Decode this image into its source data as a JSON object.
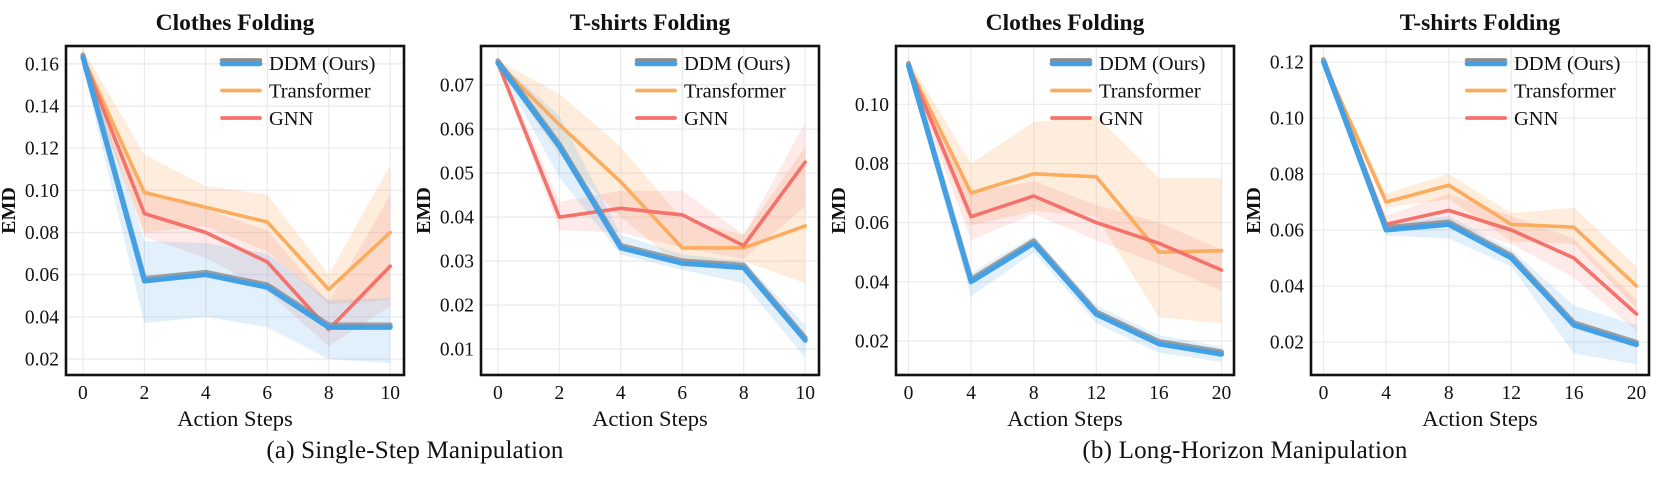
{
  "figure": {
    "captions": [
      {
        "label": "(a) Single-Step Manipulation"
      },
      {
        "label": "(b) Long-Horizon Manipulation"
      }
    ]
  },
  "colors": {
    "ddm": "#42A1E6",
    "ddm_shadow": "#8E8E8E",
    "transformer": "#FBAC5F",
    "gnn": "#F4726B",
    "grid": "#EAEAEF",
    "axis": "#111111"
  },
  "chart_data": [
    {
      "type": "line",
      "title": "Clothes Folding",
      "xlabel": "Action Steps",
      "ylabel": "EMD",
      "grid": true,
      "legend_position": "top-right",
      "x": [
        0,
        2,
        4,
        6,
        8,
        10
      ],
      "xticks": [
        0,
        2,
        4,
        6,
        8,
        10
      ],
      "yticks": [
        0.02,
        0.04,
        0.06,
        0.08,
        0.1,
        0.12,
        0.14,
        0.16
      ],
      "xlim": [
        -0.55,
        10.45
      ],
      "ylim": [
        0.0124,
        0.1685
      ],
      "series": [
        {
          "name": "DDM (Ours)",
          "color": "#42A1E6",
          "shadow": true,
          "band_opacity": 0.16,
          "values": [
            0.163,
            0.057,
            0.06,
            0.054,
            0.035,
            0.035
          ],
          "band_lower": [
            0.158,
            0.037,
            0.04,
            0.035,
            0.02,
            0.018
          ],
          "band_upper": [
            0.167,
            0.076,
            0.075,
            0.07,
            0.048,
            0.049
          ]
        },
        {
          "name": "Transformer",
          "color": "#FBAC5F",
          "shadow": false,
          "band_opacity": 0.22,
          "values": [
            0.163,
            0.099,
            0.092,
            0.085,
            0.053,
            0.08
          ],
          "band_lower": [
            0.158,
            0.08,
            0.083,
            0.071,
            0.046,
            0.048
          ],
          "band_upper": [
            0.167,
            0.117,
            0.102,
            0.098,
            0.06,
            0.112
          ]
        },
        {
          "name": "GNN",
          "color": "#F4726B",
          "shadow": false,
          "band_opacity": 0.15,
          "values": [
            0.163,
            0.089,
            0.08,
            0.066,
            0.034,
            0.064
          ],
          "band_lower": [
            0.158,
            0.078,
            0.068,
            0.052,
            0.026,
            0.045
          ],
          "band_upper": [
            0.167,
            0.1,
            0.091,
            0.081,
            0.047,
            0.098
          ]
        }
      ]
    },
    {
      "type": "line",
      "title": "T-shirts Folding",
      "xlabel": "Action Steps",
      "ylabel": "EMD",
      "grid": true,
      "legend_position": "top-right",
      "x": [
        0,
        2,
        4,
        6,
        8,
        10
      ],
      "xticks": [
        0,
        2,
        4,
        6,
        8,
        10
      ],
      "yticks": [
        0.01,
        0.02,
        0.03,
        0.04,
        0.05,
        0.06,
        0.07
      ],
      "xlim": [
        -0.55,
        10.45
      ],
      "ylim": [
        0.0041,
        0.0789
      ],
      "series": [
        {
          "name": "DDM (Ours)",
          "color": "#42A1E6",
          "shadow": true,
          "band_opacity": 0.16,
          "values": [
            0.075,
            0.056,
            0.033,
            0.0295,
            0.0285,
            0.012
          ],
          "band_lower": [
            0.0744,
            0.049,
            0.0315,
            0.028,
            0.025,
            0.008
          ],
          "band_upper": [
            0.0756,
            0.063,
            0.036,
            0.0315,
            0.03,
            0.0155
          ]
        },
        {
          "name": "Transformer",
          "color": "#FBAC5F",
          "shadow": false,
          "band_opacity": 0.22,
          "values": [
            0.075,
            0.061,
            0.048,
            0.033,
            0.033,
            0.038
          ],
          "band_lower": [
            0.0744,
            0.054,
            0.04,
            0.0285,
            0.03,
            0.025
          ],
          "band_upper": [
            0.0756,
            0.068,
            0.056,
            0.0395,
            0.036,
            0.056
          ]
        },
        {
          "name": "GNN",
          "color": "#F4726B",
          "shadow": false,
          "band_opacity": 0.15,
          "values": [
            0.075,
            0.04,
            0.042,
            0.0405,
            0.0335,
            0.0525
          ],
          "band_lower": [
            0.0744,
            0.037,
            0.0365,
            0.033,
            0.0305,
            0.0425
          ],
          "band_upper": [
            0.0756,
            0.0435,
            0.046,
            0.046,
            0.036,
            0.0615
          ]
        }
      ]
    },
    {
      "type": "line",
      "title": "Clothes Folding",
      "xlabel": "Action Steps",
      "ylabel": "EMD",
      "grid": true,
      "legend_position": "top-right",
      "x": [
        0,
        4,
        8,
        12,
        16,
        20
      ],
      "xticks": [
        0,
        4,
        8,
        12,
        16,
        20
      ],
      "yticks": [
        0.02,
        0.04,
        0.06,
        0.08,
        0.1
      ],
      "xlim": [
        -0.8,
        20.8
      ],
      "ylim": [
        0.0085,
        0.1197
      ],
      "series": [
        {
          "name": "DDM (Ours)",
          "color": "#42A1E6",
          "shadow": true,
          "band_opacity": 0.16,
          "values": [
            0.113,
            0.04,
            0.053,
            0.029,
            0.019,
            0.0155
          ],
          "band_lower": [
            0.111,
            0.035,
            0.05,
            0.026,
            0.016,
            0.013
          ],
          "band_upper": [
            0.115,
            0.043,
            0.0555,
            0.032,
            0.022,
            0.018
          ]
        },
        {
          "name": "Transformer",
          "color": "#FBAC5F",
          "shadow": false,
          "band_opacity": 0.22,
          "values": [
            0.113,
            0.07,
            0.0765,
            0.0755,
            0.05,
            0.0505
          ],
          "band_lower": [
            0.111,
            0.059,
            0.064,
            0.062,
            0.028,
            0.026
          ],
          "band_upper": [
            0.115,
            0.08,
            0.094,
            0.096,
            0.075,
            0.075
          ]
        },
        {
          "name": "GNN",
          "color": "#F4726B",
          "shadow": false,
          "band_opacity": 0.15,
          "values": [
            0.113,
            0.062,
            0.069,
            0.06,
            0.053,
            0.044
          ],
          "band_lower": [
            0.111,
            0.054,
            0.063,
            0.054,
            0.046,
            0.037
          ],
          "band_upper": [
            0.115,
            0.07,
            0.074,
            0.066,
            0.06,
            0.051
          ]
        }
      ]
    },
    {
      "type": "line",
      "title": "T-shirts Folding",
      "xlabel": "Action Steps",
      "ylabel": "EMD",
      "grid": true,
      "legend_position": "top-right",
      "x": [
        0,
        4,
        8,
        12,
        16,
        20
      ],
      "xticks": [
        0,
        4,
        8,
        12,
        16,
        20
      ],
      "yticks": [
        0.02,
        0.04,
        0.06,
        0.08,
        0.1,
        0.12
      ],
      "xlim": [
        -0.8,
        20.8
      ],
      "ylim": [
        0.0082,
        0.1257
      ],
      "series": [
        {
          "name": "DDM (Ours)",
          "color": "#42A1E6",
          "shadow": true,
          "band_opacity": 0.16,
          "values": [
            0.12,
            0.06,
            0.062,
            0.05,
            0.026,
            0.019
          ],
          "band_lower": [
            0.119,
            0.058,
            0.057,
            0.047,
            0.016,
            0.012
          ],
          "band_upper": [
            0.121,
            0.062,
            0.065,
            0.053,
            0.033,
            0.026
          ]
        },
        {
          "name": "Transformer",
          "color": "#FBAC5F",
          "shadow": false,
          "band_opacity": 0.22,
          "values": [
            0.12,
            0.07,
            0.076,
            0.062,
            0.061,
            0.04
          ],
          "band_lower": [
            0.119,
            0.068,
            0.071,
            0.056,
            0.055,
            0.032
          ],
          "band_upper": [
            0.121,
            0.073,
            0.08,
            0.066,
            0.068,
            0.047
          ]
        },
        {
          "name": "GNN",
          "color": "#F4726B",
          "shadow": false,
          "band_opacity": 0.15,
          "values": [
            0.12,
            0.062,
            0.067,
            0.06,
            0.05,
            0.03
          ],
          "band_lower": [
            0.119,
            0.06,
            0.062,
            0.055,
            0.043,
            0.024
          ],
          "band_upper": [
            0.121,
            0.065,
            0.073,
            0.065,
            0.057,
            0.035
          ]
        }
      ]
    }
  ]
}
